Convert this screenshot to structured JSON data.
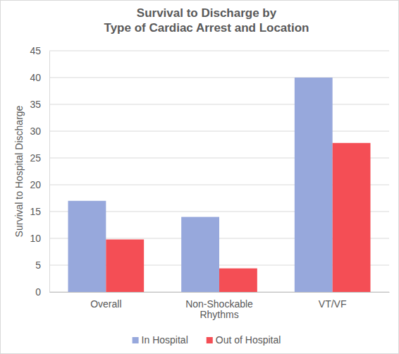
{
  "chart_data": {
    "type": "bar",
    "title": [
      "Survival to Discharge by",
      "Type of Cardiac Arrest and Location"
    ],
    "y_label": "Survival to Hospital Discharge",
    "categories": [
      "Overall",
      "Non-Shockable Rhythms",
      "VT/VF"
    ],
    "series": [
      {
        "name": "In Hospital",
        "color": "#97a8dc",
        "values": [
          17,
          14,
          40
        ]
      },
      {
        "name": "Out of Hospital",
        "color": "#f44e55",
        "values": [
          9.8,
          4.4,
          27.8
        ]
      }
    ],
    "ylim": [
      0,
      45
    ],
    "yticks": [
      0,
      5,
      10,
      15,
      20,
      25,
      30,
      35,
      40,
      45
    ],
    "grid": true,
    "legend": "bottom"
  }
}
